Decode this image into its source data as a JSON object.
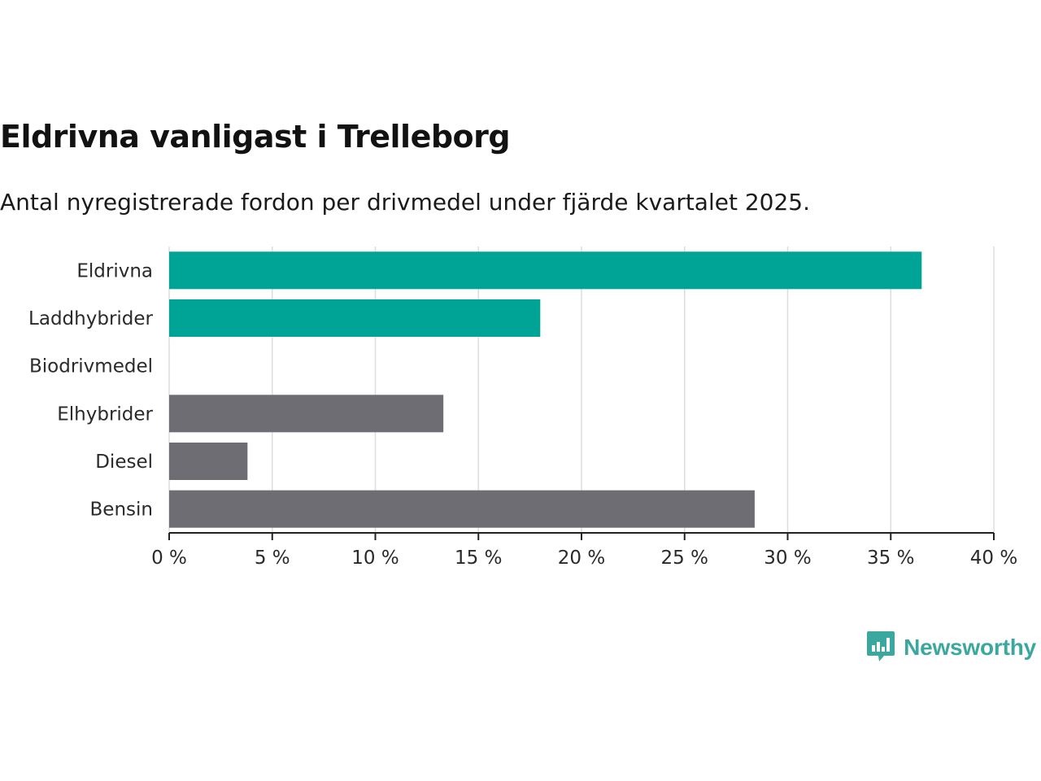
{
  "title": "Eldrivna vanligast i Trelleborg",
  "subtitle": "Antal nyregistrerade fordon per drivmedel under fjärde kvartalet 2025.",
  "brand": {
    "name": "Newsworthy",
    "logo_icon": "bar-chart-speech-bubble-icon"
  },
  "colors": {
    "highlight": "#00A497",
    "default": "#6E6D73",
    "grid": "#DDDDDD",
    "axis": "#222222",
    "brand": "#3AA89E"
  },
  "chart_data": {
    "type": "bar",
    "orientation": "horizontal",
    "categories": [
      "Eldrivna",
      "Laddhybrider",
      "Biodrivmedel",
      "Elhybrider",
      "Diesel",
      "Bensin"
    ],
    "values": [
      36.5,
      18.0,
      0,
      13.3,
      3.8,
      28.4
    ],
    "highlighted": [
      true,
      true,
      false,
      false,
      false,
      false
    ],
    "unit": "%",
    "xlim": [
      0,
      40
    ],
    "xticks": [
      0,
      5,
      10,
      15,
      20,
      25,
      30,
      35,
      40
    ],
    "xtick_labels": [
      "0 %",
      "5 %",
      "10 %",
      "15 %",
      "20 %",
      "25 %",
      "30 %",
      "35 %",
      "40 %"
    ],
    "grid": true
  }
}
